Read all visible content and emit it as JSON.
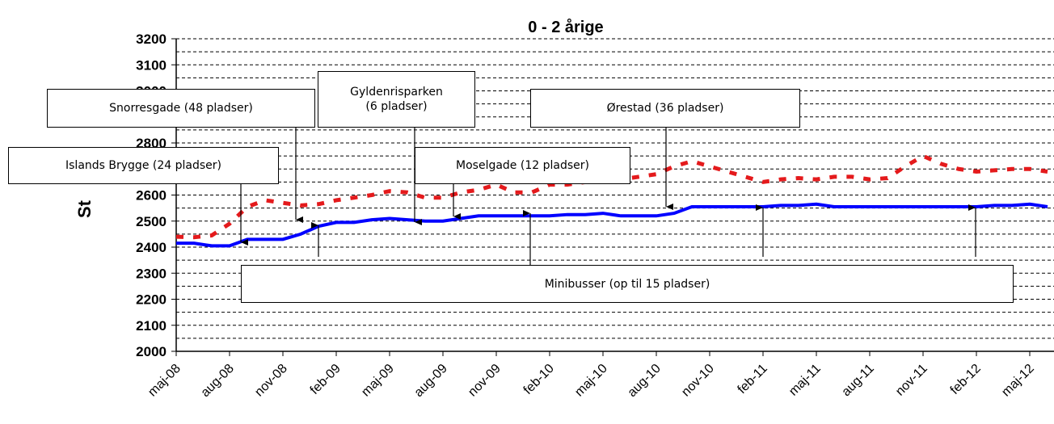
{
  "chart_data": {
    "type": "line",
    "title": "0 - 2 årige",
    "y_label": "St",
    "categories": [
      "maj-08",
      null,
      null,
      "aug-08",
      null,
      null,
      "nov-08",
      null,
      null,
      "feb-09",
      null,
      null,
      "maj-09",
      null,
      null,
      "aug-09",
      null,
      null,
      "nov-09",
      null,
      null,
      "feb-10",
      null,
      null,
      "maj-10",
      null,
      null,
      "aug-10",
      null,
      null,
      "nov-10",
      null,
      null,
      "feb-11",
      null,
      null,
      "maj-11",
      null,
      null,
      "aug-11",
      null,
      null,
      "nov-11",
      null,
      null,
      "feb-12",
      null,
      null,
      "maj-12",
      null
    ],
    "series": [
      {
        "color": "#e41a1c",
        "dashed": true,
        "values": [
          2440,
          2438,
          2445,
          2490,
          2555,
          2580,
          2570,
          2560,
          2565,
          2580,
          2590,
          2600,
          2615,
          2610,
          2590,
          2590,
          2610,
          2620,
          2640,
          2610,
          2610,
          2640,
          2640,
          2650,
          2650,
          2660,
          2670,
          2680,
          2710,
          2730,
          2710,
          2690,
          2670,
          2650,
          2660,
          2665,
          2660,
          2670,
          2670,
          2660,
          2665,
          2710,
          2750,
          2720,
          2700,
          2690,
          2695,
          2700,
          2700,
          2690
        ]
      },
      {
        "color": "#0000ff",
        "dashed": false,
        "values": [
          2415,
          2415,
          2405,
          2405,
          2430,
          2430,
          2430,
          2450,
          2480,
          2495,
          2495,
          2505,
          2510,
          2505,
          2500,
          2500,
          2510,
          2520,
          2520,
          2520,
          2520,
          2520,
          2525,
          2525,
          2530,
          2520,
          2520,
          2520,
          2530,
          2555,
          2555,
          2555,
          2555,
          2555,
          2560,
          2560,
          2565,
          2555,
          2555,
          2555,
          2555,
          2555,
          2555,
          2555,
          2555,
          2555,
          2560,
          2560,
          2565,
          2555
        ]
      }
    ],
    "ylim": [
      2000,
      3200
    ],
    "yticks": [
      2000,
      2100,
      2200,
      2300,
      2400,
      2500,
      2600,
      2700,
      2800,
      2900,
      3000,
      3100,
      3200
    ],
    "yminorticks": [
      2050,
      2150,
      2250,
      2350,
      2450,
      2550,
      2650,
      2750,
      2850,
      2950,
      3050,
      3150
    ],
    "grid": true,
    "annotations": [
      "Islands Brygge (24 pladser)",
      "Snorresgade (48 pladser)",
      "Gyldenrisparken\n(6 pladser)",
      "Moselgade (12 pladser)",
      "Ørestad (36 pladser)",
      "Minibusser (op til 15 pladser)"
    ]
  }
}
